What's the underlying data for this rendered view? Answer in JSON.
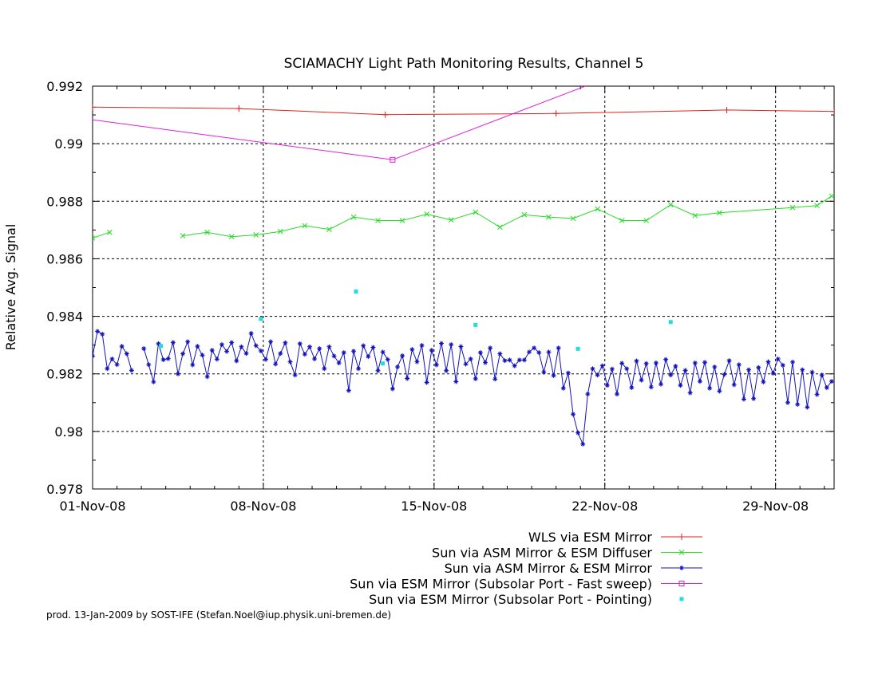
{
  "chart_data": {
    "type": "line",
    "title": "SCIAMACHY Light Path Monitoring Results, Channel 5",
    "ylabel": "Relative Avg. Signal",
    "xlabel": "",
    "xlim": [
      0,
      30.4
    ],
    "ylim": [
      0.978,
      0.992
    ],
    "x_ticks": [
      {
        "day": 0,
        "label": "01-Nov-08"
      },
      {
        "day": 7,
        "label": "08-Nov-08"
      },
      {
        "day": 14,
        "label": "15-Nov-08"
      },
      {
        "day": 21,
        "label": "22-Nov-08"
      },
      {
        "day": 28,
        "label": "29-Nov-08"
      }
    ],
    "y_ticks": [
      {
        "value": 0.978,
        "label": "0.978"
      },
      {
        "value": 0.98,
        "label": "0.98"
      },
      {
        "value": 0.982,
        "label": "0.982"
      },
      {
        "value": 0.984,
        "label": "0.984"
      },
      {
        "value": 0.986,
        "label": "0.986"
      },
      {
        "value": 0.988,
        "label": "0.988"
      },
      {
        "value": 0.99,
        "label": "0.99"
      },
      {
        "value": 0.992,
        "label": "0.992"
      }
    ],
    "grid": true,
    "legend_position": "bottom-right",
    "series": [
      {
        "name": "WLS via ESM Mirror",
        "color": "#dd2222",
        "marker": "plus",
        "x": [
          0,
          6,
          12,
          19,
          26,
          30.4
        ],
        "y": [
          0.99127,
          0.99122,
          0.99101,
          0.99105,
          0.99117,
          0.99112
        ]
      },
      {
        "name": "Sun via ASM Mirror & ESM Diffuser",
        "color": "#22dd22",
        "marker": "x",
        "x": [
          0,
          0.7,
          3.7,
          4.7,
          5.7,
          6.7,
          7.7,
          8.7,
          9.7,
          10.7,
          11.7,
          12.7,
          13.7,
          14.7,
          15.7,
          16.7,
          17.7,
          18.7,
          19.7,
          20.7,
          21.7,
          22.7,
          23.7,
          24.7,
          25.7,
          28.7,
          29.7,
          30.3
        ],
        "y": [
          0.98672,
          0.98692,
          0.9868,
          0.98692,
          0.98677,
          0.98683,
          0.98695,
          0.98715,
          0.98702,
          0.98745,
          0.98733,
          0.98733,
          0.98755,
          0.98735,
          0.98762,
          0.9871,
          0.98753,
          0.98745,
          0.9874,
          0.98773,
          0.98733,
          0.98733,
          0.98788,
          0.9875,
          0.9876,
          0.98778,
          0.98785,
          0.98818
        ],
        "gaps_before_index": [
          2
        ]
      },
      {
        "name": "Sun via ASM Mirror & ESM Mirror",
        "color": "#1111bb",
        "marker": "star",
        "x": [
          0,
          0.2,
          0.4,
          0.6,
          0.8,
          1.0,
          1.2,
          1.4,
          1.6,
          2.1,
          2.3,
          2.5,
          2.7,
          2.9,
          3.1,
          3.3,
          3.5,
          3.7,
          3.9,
          4.1,
          4.3,
          4.5,
          4.7,
          4.9,
          5.1,
          5.3,
          5.5,
          5.7,
          5.9,
          6.1,
          6.3,
          6.5,
          6.7,
          6.9,
          7.1,
          7.3,
          7.5,
          7.7,
          7.9,
          8.1,
          8.3,
          8.5,
          8.7,
          8.9,
          9.1,
          9.3,
          9.5,
          9.7,
          9.9,
          10.1,
          10.3,
          10.5,
          10.7,
          10.9,
          11.1,
          11.3,
          11.5,
          11.7,
          11.9,
          12.1,
          12.3,
          12.5,
          12.7,
          12.9,
          13.1,
          13.3,
          13.5,
          13.7,
          13.9,
          14.1,
          14.3,
          14.5,
          14.7,
          14.9,
          15.1,
          15.3,
          15.5,
          15.7,
          15.9,
          16.1,
          16.3,
          16.5,
          16.7,
          16.9,
          17.1,
          17.3,
          17.5,
          17.7,
          17.9,
          18.1,
          18.3,
          18.5,
          18.7,
          18.9,
          19.1,
          19.3,
          19.5,
          19.7,
          19.9,
          20.1,
          20.3,
          20.5,
          20.7,
          20.9,
          21.1,
          21.3,
          21.5,
          21.7,
          21.9,
          22.1,
          22.3,
          22.5,
          22.7,
          22.9,
          23.1,
          23.3,
          23.5,
          23.7,
          23.9,
          24.1,
          24.3,
          24.5,
          24.7,
          24.9,
          25.1,
          25.3,
          25.5,
          25.7,
          25.9,
          26.1,
          26.3,
          26.5,
          26.7,
          26.9,
          27.1,
          27.3,
          27.5,
          27.7,
          27.9,
          28.1,
          28.3,
          28.5,
          28.7,
          28.9,
          29.1,
          29.3,
          29.5,
          29.7,
          29.9,
          30.1,
          30.3
        ],
        "y": [
          0.98262,
          0.98348,
          0.98338,
          0.98218,
          0.98252,
          0.98232,
          0.98296,
          0.9827,
          0.98212,
          0.98288,
          0.98232,
          0.98172,
          0.98305,
          0.98249,
          0.98253,
          0.98309,
          0.982,
          0.9827,
          0.98312,
          0.98231,
          0.98296,
          0.98265,
          0.9819,
          0.98282,
          0.98251,
          0.98302,
          0.98278,
          0.98309,
          0.98245,
          0.98294,
          0.98271,
          0.98341,
          0.98298,
          0.9828,
          0.9825,
          0.98312,
          0.98234,
          0.98271,
          0.98308,
          0.98242,
          0.98196,
          0.98305,
          0.98268,
          0.98294,
          0.98252,
          0.98288,
          0.98218,
          0.98294,
          0.98262,
          0.98238,
          0.98274,
          0.98142,
          0.98279,
          0.98218,
          0.98298,
          0.9826,
          0.98292,
          0.98211,
          0.98276,
          0.9825,
          0.98148,
          0.98224,
          0.98263,
          0.98184,
          0.98285,
          0.98242,
          0.98299,
          0.9817,
          0.98282,
          0.98231,
          0.98306,
          0.98211,
          0.98302,
          0.98173,
          0.98295,
          0.98234,
          0.98252,
          0.98183,
          0.98274,
          0.98239,
          0.9829,
          0.98182,
          0.9827,
          0.98246,
          0.98248,
          0.98228,
          0.98248,
          0.98248,
          0.98276,
          0.9829,
          0.98274,
          0.98206,
          0.98276,
          0.98194,
          0.9829,
          0.9815,
          0.98203,
          0.9806,
          0.97995,
          0.97956,
          0.9813,
          0.98218,
          0.98196,
          0.98228,
          0.9816,
          0.98217,
          0.9813,
          0.98237,
          0.98218,
          0.98152,
          0.98245,
          0.98178,
          0.98236,
          0.98154,
          0.98238,
          0.98164,
          0.9825,
          0.98196,
          0.98227,
          0.9816,
          0.98212,
          0.98134,
          0.98238,
          0.98174,
          0.9824,
          0.9815,
          0.98224,
          0.9814,
          0.98198,
          0.98246,
          0.98162,
          0.98232,
          0.98112,
          0.98214,
          0.98114,
          0.98222,
          0.98172,
          0.98242,
          0.98202,
          0.98252,
          0.9823,
          0.981,
          0.98241,
          0.98094,
          0.98214,
          0.98084,
          0.98206,
          0.98128,
          0.98196,
          0.98152,
          0.98174
        ],
        "gaps_before_index": [
          9
        ]
      },
      {
        "name": "Sun via ESM Mirror (Subsolar Port - Fast sweep)",
        "color": "#dd22dd",
        "marker": "square",
        "x": [
          0,
          12.3,
          20.2
        ],
        "y": [
          0.99083,
          0.98944,
          0.992
        ]
      },
      {
        "name": "Sun via ESM Mirror (Subsolar Port - Pointing)",
        "color": "#22dddd",
        "marker": "dot",
        "x": [
          2.8,
          6.9,
          10.8,
          11.9,
          15.7,
          19.9,
          23.7
        ],
        "y": [
          0.98297,
          0.98391,
          0.98486,
          0.98236,
          0.9837,
          0.98287,
          0.9838
        ]
      }
    ]
  },
  "footer": {
    "text": "prod. 13-Jan-2009 by SOST-IFE (Stefan.Noel@iup.physik.uni-bremen.de)"
  }
}
